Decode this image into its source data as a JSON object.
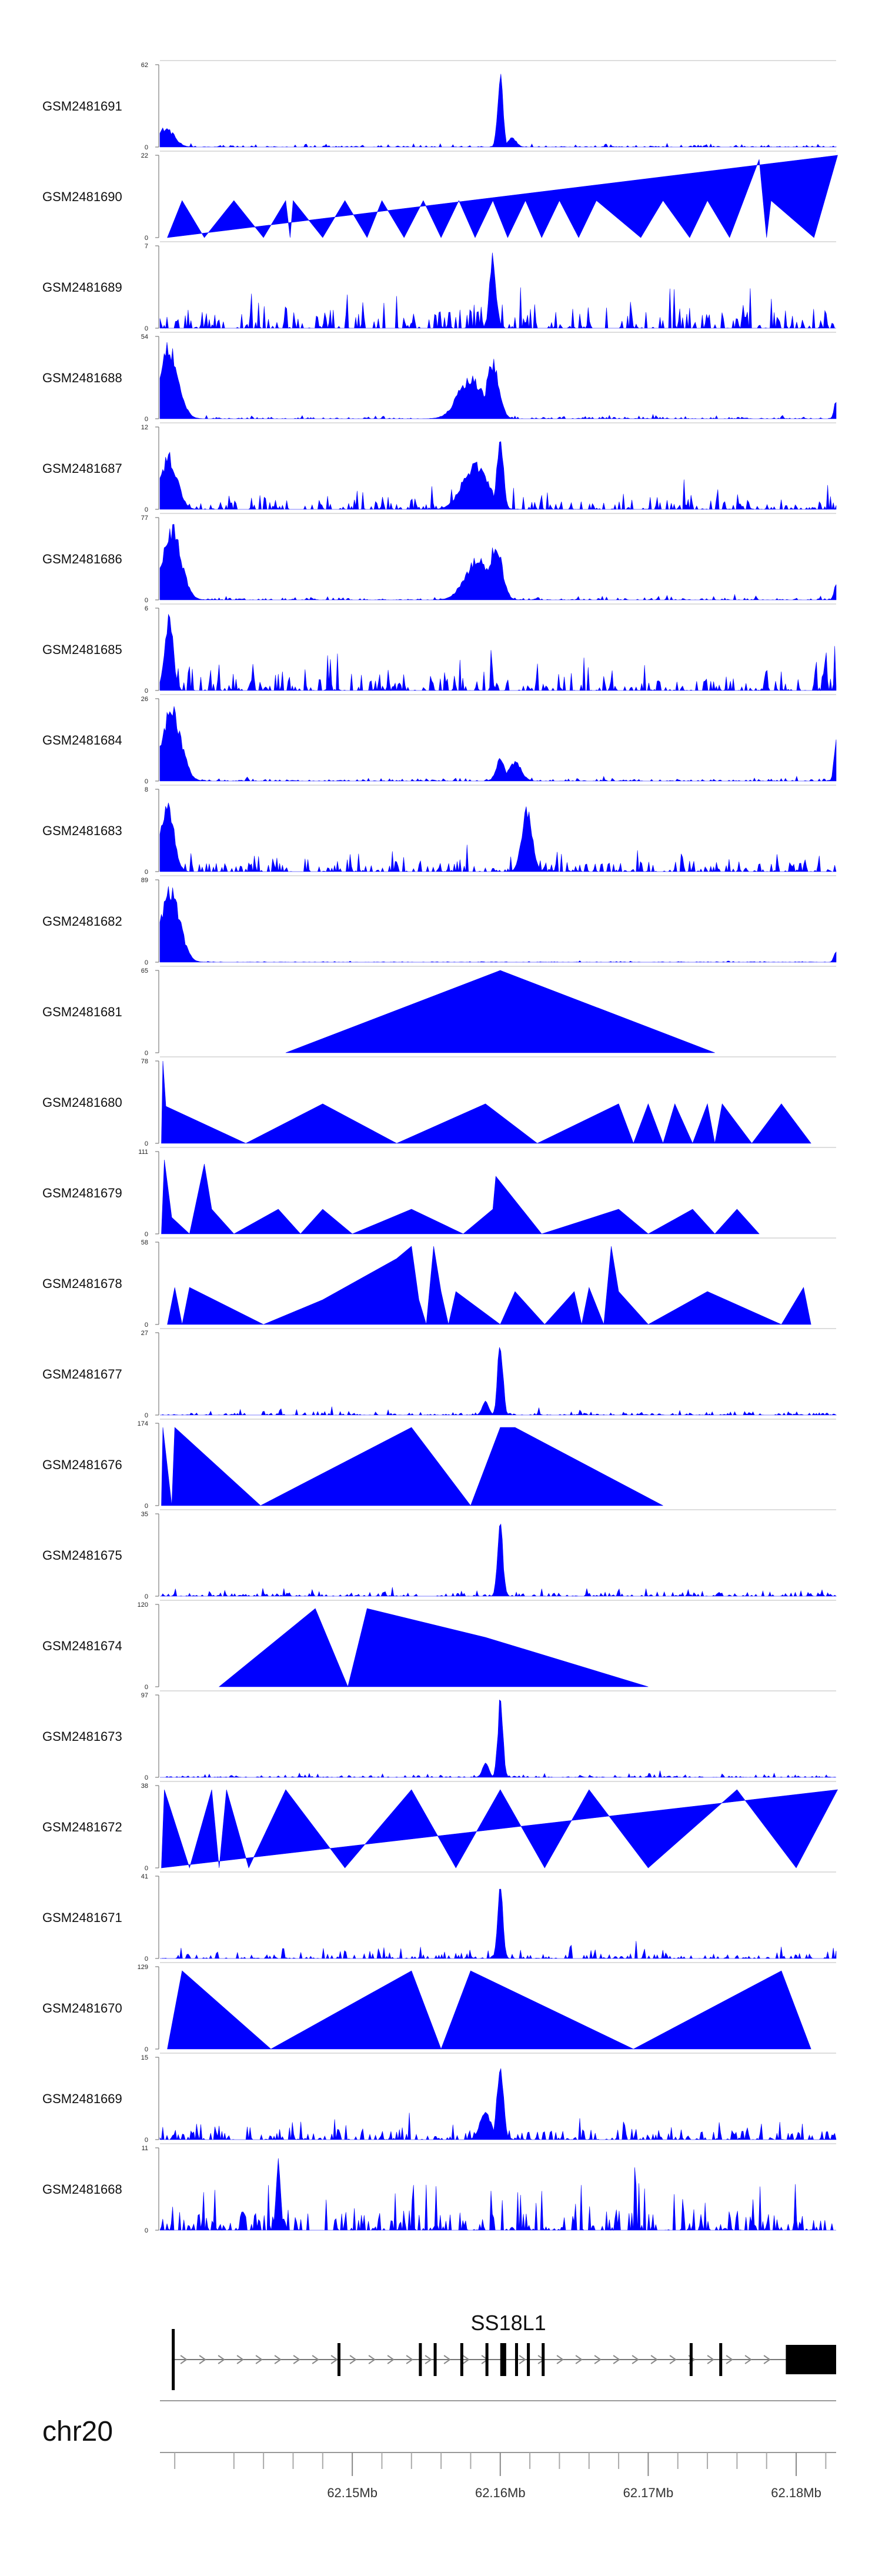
{
  "chart_data": {
    "type": "area",
    "title": "",
    "chromosome": "chr20",
    "gene": "SS18L1",
    "fill_color": "#0000ff",
    "x_range_mb": [
      62.137,
      62.1827
    ],
    "x_ticks": [
      {
        "value": 62.15,
        "label": "62.15Mb"
      },
      {
        "value": 62.16,
        "label": "62.16Mb"
      },
      {
        "value": 62.17,
        "label": "62.17Mb"
      },
      {
        "value": 62.18,
        "label": "62.18Mb"
      }
    ],
    "tracks": [
      {
        "name": "GSM2481691",
        "ymax": 62,
        "profile": "spiky",
        "seed": 1,
        "base": 0.03,
        "peaks": [
          [
            62.1374,
            0.25,
            0.0008
          ],
          [
            62.16,
            1.0,
            0.00025
          ],
          [
            62.1608,
            0.12,
            0.0004
          ]
        ]
      },
      {
        "name": "GSM2481690",
        "ymax": 22,
        "profile": "tri",
        "points": [
          [
            62.1375,
            0
          ],
          [
            62.1385,
            0.45
          ],
          [
            62.14,
            0
          ],
          [
            62.142,
            0.45
          ],
          [
            62.144,
            0
          ],
          [
            62.1455,
            0.45
          ],
          [
            62.1458,
            0
          ],
          [
            62.146,
            0.45
          ],
          [
            62.148,
            0
          ],
          [
            62.1495,
            0.45
          ],
          [
            62.151,
            0
          ],
          [
            62.152,
            0.45
          ],
          [
            62.1535,
            0
          ],
          [
            62.1548,
            0.45
          ],
          [
            62.156,
            0
          ],
          [
            62.1572,
            0.45
          ],
          [
            62.1583,
            0
          ],
          [
            62.1595,
            0.45
          ],
          [
            62.1605,
            0
          ],
          [
            62.1617,
            0.45
          ],
          [
            62.1628,
            0
          ],
          [
            62.164,
            0.45
          ],
          [
            62.1653,
            0
          ],
          [
            62.1665,
            0.45
          ],
          [
            62.1695,
            0
          ],
          [
            62.171,
            0.45
          ],
          [
            62.1728,
            0
          ],
          [
            62.174,
            0.45
          ],
          [
            62.1755,
            0
          ],
          [
            62.1775,
            0.95
          ],
          [
            62.178,
            0
          ],
          [
            62.1783,
            0.45
          ],
          [
            62.1812,
            0
          ],
          [
            62.1828,
            1.0
          ]
        ]
      },
      {
        "name": "GSM2481689",
        "ymax": 7,
        "profile": "spiky",
        "seed": 3,
        "base": 0.35,
        "peaks": [
          [
            62.1595,
            0.95,
            0.0003
          ]
        ]
      },
      {
        "name": "GSM2481688",
        "ymax": 54,
        "profile": "spiky",
        "seed": 4,
        "base": 0.03,
        "peaks": [
          [
            62.1376,
            0.95,
            0.0009
          ],
          [
            62.158,
            0.55,
            0.0012
          ],
          [
            62.1595,
            0.75,
            0.0006
          ],
          [
            62.1827,
            0.25,
            0.0002
          ]
        ]
      },
      {
        "name": "GSM2481687",
        "ymax": 12,
        "profile": "spiky",
        "seed": 5,
        "base": 0.2,
        "peaks": [
          [
            62.1376,
            0.7,
            0.0008
          ],
          [
            62.1583,
            0.6,
            0.0012
          ],
          [
            62.16,
            1.0,
            0.0003
          ]
        ]
      },
      {
        "name": "GSM2481686",
        "ymax": 77,
        "profile": "spiky",
        "seed": 6,
        "base": 0.03,
        "peaks": [
          [
            62.1378,
            0.95,
            0.0009
          ],
          [
            62.1585,
            0.55,
            0.0012
          ],
          [
            62.1597,
            0.75,
            0.0006
          ],
          [
            62.1827,
            0.22,
            0.0002
          ]
        ]
      },
      {
        "name": "GSM2481685",
        "ymax": 6,
        "profile": "spiky",
        "seed": 7,
        "base": 0.35,
        "peaks": [
          [
            62.1376,
            1.0,
            0.0004
          ]
        ]
      },
      {
        "name": "GSM2481684",
        "ymax": 26,
        "profile": "spiky",
        "seed": 8,
        "base": 0.04,
        "peaks": [
          [
            62.1378,
            0.95,
            0.0009
          ],
          [
            62.16,
            0.3,
            0.0004
          ],
          [
            62.161,
            0.25,
            0.0006
          ],
          [
            62.1827,
            0.55,
            0.0002
          ]
        ]
      },
      {
        "name": "GSM2481683",
        "ymax": 8,
        "profile": "spiky",
        "seed": 9,
        "base": 0.18,
        "peaks": [
          [
            62.1375,
            0.95,
            0.0006
          ],
          [
            62.1618,
            0.8,
            0.0005
          ]
        ]
      },
      {
        "name": "GSM2481682",
        "ymax": 89,
        "profile": "spiky",
        "seed": 10,
        "base": 0.01,
        "peaks": [
          [
            62.1377,
            0.95,
            0.0009
          ],
          [
            62.1827,
            0.15,
            0.0002
          ]
        ]
      },
      {
        "name": "GSM2481681",
        "ymax": 65,
        "profile": "tri",
        "points": [
          [
            62.1455,
            0
          ],
          [
            62.16,
            1.0
          ],
          [
            62.1745,
            0
          ]
        ]
      },
      {
        "name": "GSM2481680",
        "ymax": 78,
        "profile": "tri",
        "points": [
          [
            62.1371,
            0
          ],
          [
            62.1372,
            1.0
          ],
          [
            62.1374,
            0.45
          ],
          [
            62.1428,
            0
          ],
          [
            62.148,
            0.48
          ],
          [
            62.153,
            0
          ],
          [
            62.159,
            0.48
          ],
          [
            62.1625,
            0
          ],
          [
            62.168,
            0.48
          ],
          [
            62.169,
            0
          ],
          [
            62.17,
            0.48
          ],
          [
            62.171,
            0
          ],
          [
            62.1718,
            0.48
          ],
          [
            62.173,
            0
          ],
          [
            62.174,
            0.48
          ],
          [
            62.1745,
            0
          ],
          [
            62.175,
            0.48
          ],
          [
            62.177,
            0
          ],
          [
            62.179,
            0.48
          ],
          [
            62.181,
            0
          ]
        ]
      },
      {
        "name": "GSM2481679",
        "ymax": 111,
        "profile": "tri",
        "points": [
          [
            62.1371,
            0
          ],
          [
            62.1373,
            0.9
          ],
          [
            62.1378,
            0.2
          ],
          [
            62.139,
            0
          ],
          [
            62.14,
            0.85
          ],
          [
            62.1405,
            0.3
          ],
          [
            62.142,
            0
          ],
          [
            62.145,
            0.3
          ],
          [
            62.1465,
            0
          ],
          [
            62.148,
            0.3
          ],
          [
            62.15,
            0
          ],
          [
            62.154,
            0.3
          ],
          [
            62.1575,
            0
          ],
          [
            62.1595,
            0.3
          ],
          [
            62.1597,
            0.7
          ],
          [
            62.1628,
            0
          ],
          [
            62.168,
            0.3
          ],
          [
            62.17,
            0
          ],
          [
            62.173,
            0.3
          ],
          [
            62.1745,
            0
          ],
          [
            62.176,
            0.3
          ],
          [
            62.1775,
            0
          ]
        ]
      },
      {
        "name": "GSM2481678",
        "ymax": 58,
        "profile": "tri",
        "points": [
          [
            62.1375,
            0
          ],
          [
            62.138,
            0.45
          ],
          [
            62.1385,
            0
          ],
          [
            62.139,
            0.45
          ],
          [
            62.144,
            0
          ],
          [
            62.148,
            0.3
          ],
          [
            62.153,
            0.8
          ],
          [
            62.154,
            0.95
          ],
          [
            62.1545,
            0.3
          ],
          [
            62.155,
            0
          ],
          [
            62.1555,
            0.95
          ],
          [
            62.156,
            0.4
          ],
          [
            62.1565,
            0
          ],
          [
            62.157,
            0.4
          ],
          [
            62.16,
            0
          ],
          [
            62.161,
            0.4
          ],
          [
            62.163,
            0
          ],
          [
            62.165,
            0.4
          ],
          [
            62.1655,
            0
          ],
          [
            62.166,
            0.45
          ],
          [
            62.167,
            0
          ],
          [
            62.1675,
            0.95
          ],
          [
            62.168,
            0.4
          ],
          [
            62.17,
            0
          ],
          [
            62.174,
            0.4
          ],
          [
            62.179,
            0
          ],
          [
            62.1805,
            0.45
          ],
          [
            62.181,
            0
          ]
        ]
      },
      {
        "name": "GSM2481677",
        "ymax": 27,
        "profile": "spiky",
        "seed": 15,
        "base": 0.05,
        "peaks": [
          [
            62.16,
            1.0,
            0.00025
          ],
          [
            62.159,
            0.2,
            0.0003
          ]
        ]
      },
      {
        "name": "GSM2481676",
        "ymax": 174,
        "profile": "tri",
        "points": [
          [
            62.1371,
            0
          ],
          [
            62.1372,
            0.95
          ],
          [
            62.1378,
            0
          ],
          [
            62.138,
            0.95
          ],
          [
            62.1438,
            0
          ],
          [
            62.154,
            0.95
          ],
          [
            62.158,
            0
          ],
          [
            62.16,
            0.95
          ],
          [
            62.161,
            0.95
          ],
          [
            62.171,
            0
          ]
        ]
      },
      {
        "name": "GSM2481675",
        "ymax": 35,
        "profile": "spiky",
        "seed": 17,
        "base": 0.07,
        "peaks": [
          [
            62.16,
            1.0,
            0.00025
          ]
        ]
      },
      {
        "name": "GSM2481674",
        "ymax": 120,
        "profile": "tri",
        "points": [
          [
            62.141,
            0
          ],
          [
            62.1475,
            0.95
          ],
          [
            62.1497,
            0
          ],
          [
            62.151,
            0.95
          ],
          [
            62.159,
            0.6
          ],
          [
            62.17,
            0
          ]
        ]
      },
      {
        "name": "GSM2481673",
        "ymax": 97,
        "profile": "spiky",
        "seed": 19,
        "base": 0.04,
        "peaks": [
          [
            62.16,
            1.0,
            0.00025
          ],
          [
            62.159,
            0.2,
            0.0003
          ]
        ]
      },
      {
        "name": "GSM2481672",
        "ymax": 38,
        "profile": "tri",
        "points": [
          [
            62.1371,
            0
          ],
          [
            62.1373,
            0.95
          ],
          [
            62.139,
            0
          ],
          [
            62.1405,
            0.95
          ],
          [
            62.141,
            0
          ],
          [
            62.1415,
            0.95
          ],
          [
            62.143,
            0
          ],
          [
            62.1455,
            0.95
          ],
          [
            62.1495,
            0
          ],
          [
            62.154,
            0.95
          ],
          [
            62.157,
            0
          ],
          [
            62.16,
            0.95
          ],
          [
            62.163,
            0
          ],
          [
            62.166,
            0.95
          ],
          [
            62.17,
            0
          ],
          [
            62.176,
            0.95
          ],
          [
            62.18,
            0
          ],
          [
            62.1828,
            0.95
          ]
        ]
      },
      {
        "name": "GSM2481671",
        "ymax": 41,
        "profile": "spiky",
        "seed": 21,
        "base": 0.12,
        "peaks": [
          [
            62.16,
            1.0,
            0.00025
          ]
        ]
      },
      {
        "name": "GSM2481670",
        "ymax": 129,
        "profile": "tri",
        "points": [
          [
            62.1375,
            0
          ],
          [
            62.1385,
            0.95
          ],
          [
            62.1445,
            0
          ],
          [
            62.154,
            0.95
          ],
          [
            62.156,
            0
          ],
          [
            62.158,
            0.95
          ],
          [
            62.169,
            0
          ],
          [
            62.179,
            0.95
          ],
          [
            62.181,
            0
          ]
        ]
      },
      {
        "name": "GSM2481669",
        "ymax": 15,
        "profile": "spiky",
        "seed": 23,
        "base": 0.18,
        "peaks": [
          [
            62.16,
            1.0,
            0.0003
          ],
          [
            62.159,
            0.4,
            0.0005
          ]
        ]
      },
      {
        "name": "GSM2481668",
        "ymax": 11,
        "profile": "spiky",
        "seed": 24,
        "base": 0.4,
        "peaks": [
          [
            62.145,
            1.0,
            0.0002
          ]
        ]
      }
    ],
    "gene_model": {
      "start": 62.1378,
      "end": 62.1827,
      "exons": [
        [
          62.1378,
          62.138
        ],
        [
          62.149,
          62.1492
        ],
        [
          62.1545,
          62.1547
        ],
        [
          62.1555,
          62.1557
        ],
        [
          62.1573,
          62.1575
        ],
        [
          62.159,
          62.1592
        ],
        [
          62.16,
          62.1604
        ],
        [
          62.161,
          62.1612
        ],
        [
          62.1618,
          62.162
        ],
        [
          62.1628,
          62.163
        ],
        [
          62.1728,
          62.173
        ],
        [
          62.1748,
          62.175
        ],
        [
          62.1793,
          62.1827
        ]
      ]
    }
  }
}
